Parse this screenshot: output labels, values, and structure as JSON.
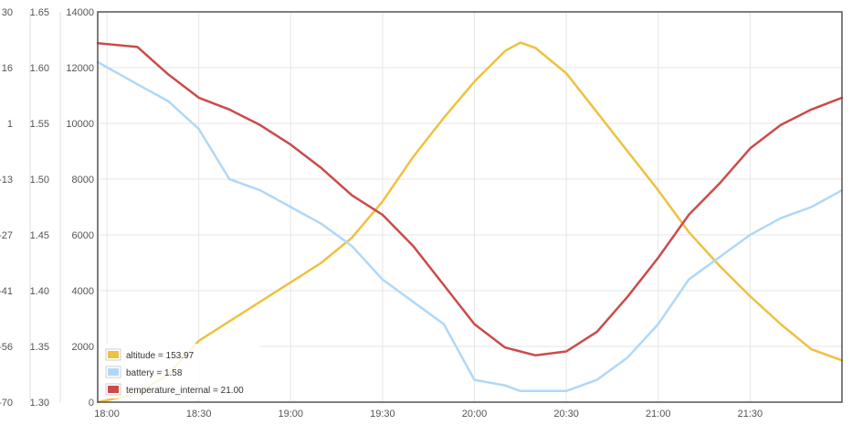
{
  "chart_data": {
    "type": "line",
    "title": "",
    "xlabel": "",
    "ylabel": "",
    "grid": true,
    "legend_placement": "bottom-left",
    "x_ticks": [
      "18:00",
      "18:30",
      "19:00",
      "19:30",
      "20:00",
      "20:30",
      "21:00",
      "21:30"
    ],
    "x_range": [
      "17:57",
      "22:00"
    ],
    "axes": [
      {
        "id": "temp",
        "ticks": [
          "30",
          "16",
          "1",
          "-13",
          "-27",
          "-41",
          "-56",
          "-70"
        ],
        "range": [
          -70,
          30
        ]
      },
      {
        "id": "batt",
        "ticks": [
          "1.65",
          "1.60",
          "1.55",
          "1.50",
          "1.45",
          "1.40",
          "1.35",
          "1.30"
        ],
        "range": [
          1.3,
          1.65
        ]
      },
      {
        "id": "alt",
        "ticks": [
          "14000",
          "12000",
          "10000",
          "8000",
          "6000",
          "4000",
          "2000",
          "0"
        ],
        "range": [
          0,
          14000
        ]
      }
    ],
    "x": [
      "17:57",
      "18:10",
      "18:20",
      "18:30",
      "18:40",
      "18:50",
      "19:00",
      "19:10",
      "19:20",
      "19:30",
      "19:40",
      "19:50",
      "20:00",
      "20:10",
      "20:15",
      "20:20",
      "20:30",
      "20:40",
      "20:50",
      "21:00",
      "21:10",
      "21:20",
      "21:30",
      "21:40",
      "21:50",
      "22:00"
    ],
    "series": [
      {
        "name": "altitude = 153.97",
        "axis": "alt",
        "color": "#edc240",
        "values": [
          0,
          300,
          1000,
          2200,
          2900,
          3600,
          4300,
          5000,
          5900,
          7200,
          8800,
          10200,
          11500,
          12600,
          12900,
          12700,
          11800,
          10400,
          9000,
          7600,
          6100,
          4900,
          3800,
          2800,
          1900,
          1500
        ]
      },
      {
        "name": "battery = 1.58",
        "axis": "batt",
        "color": "#afd8f8",
        "values": [
          1.605,
          1.585,
          1.57,
          1.545,
          1.5,
          1.49,
          1.475,
          1.46,
          1.44,
          1.41,
          1.39,
          1.37,
          1.32,
          1.315,
          1.31,
          1.31,
          1.31,
          1.32,
          1.34,
          1.37,
          1.41,
          1.43,
          1.45,
          1.465,
          1.475,
          1.49
        ]
      },
      {
        "name": "temperature_internal = 21.00",
        "axis": "temp",
        "color": "#cb4b4b",
        "values": [
          22,
          21,
          14,
          8,
          5,
          1,
          -4,
          -10,
          -17,
          -22,
          -30,
          -40,
          -50,
          -56,
          -57,
          -58,
          -57,
          -52,
          -43,
          -33,
          -22,
          -14,
          -5,
          1,
          5,
          8
        ]
      }
    ]
  }
}
